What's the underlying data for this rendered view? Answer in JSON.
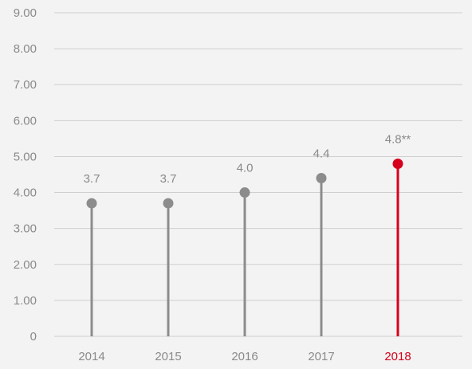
{
  "chart_data": {
    "type": "lollipop",
    "categories": [
      "2014",
      "2015",
      "2016",
      "2017",
      "2018"
    ],
    "values": [
      3.7,
      3.7,
      4.0,
      4.4,
      4.8
    ],
    "data_labels": [
      "3.7",
      "3.7",
      "4.0",
      "4.4",
      "4.8**"
    ],
    "ylim": [
      0,
      9
    ],
    "yticks": [
      0,
      1,
      2,
      3,
      4,
      5,
      6,
      7,
      8,
      9
    ],
    "ytick_labels": [
      "0",
      "1.00",
      "2.00",
      "3.00",
      "4.00",
      "5.00",
      "6.00",
      "7.00",
      "8.00",
      "9.00"
    ],
    "grid": true,
    "highlight_index": 4,
    "colors": {
      "default": "#8c8c8c",
      "highlight": "#d5001c",
      "axis_text": "#8a8a8a",
      "grid": "#cfcfcf",
      "background": "#f3f3f3"
    }
  }
}
